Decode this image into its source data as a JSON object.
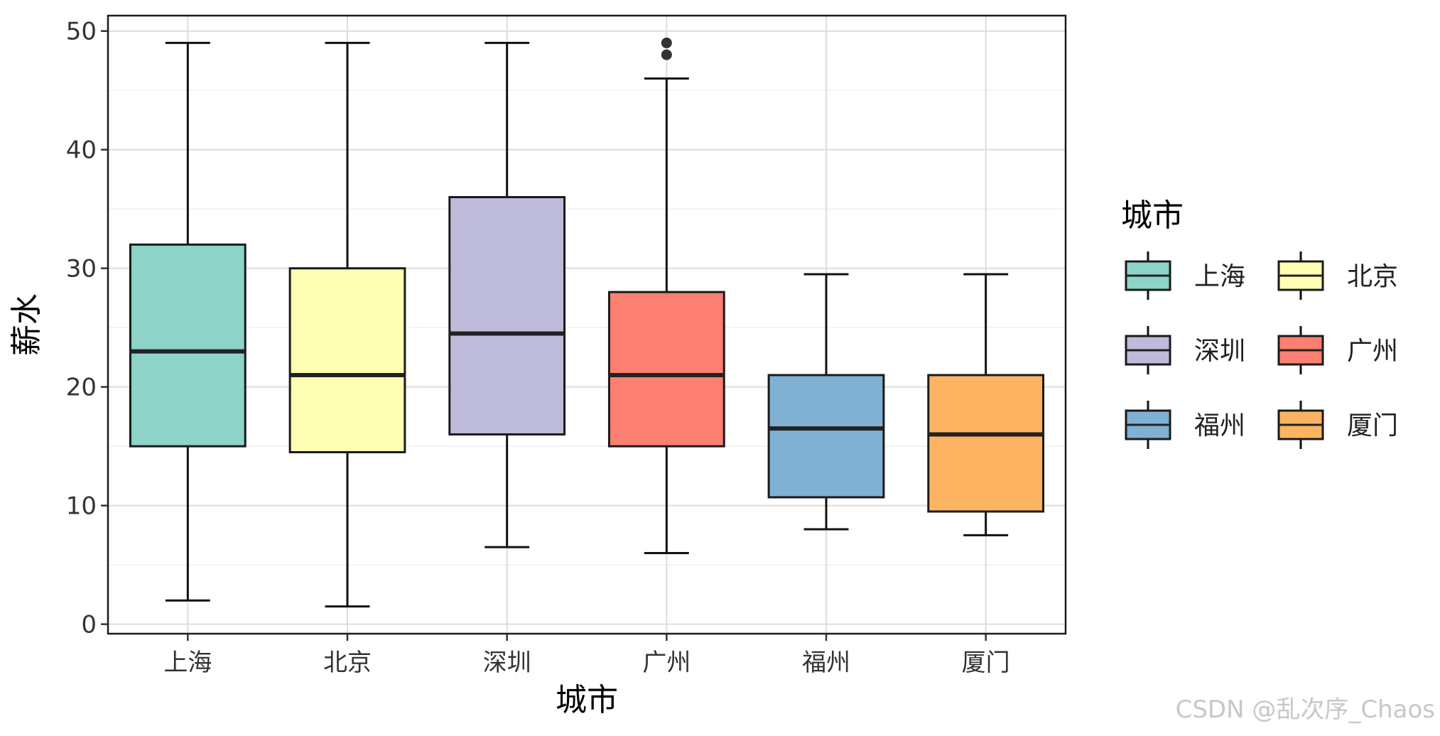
{
  "chart_data": {
    "type": "box",
    "categories": [
      "上海",
      "北京",
      "深圳",
      "广州",
      "福州",
      "厦门"
    ],
    "boxes": [
      {
        "category": "上海",
        "min": 2,
        "q1": 15,
        "median": 23,
        "q3": 32,
        "max": 49,
        "outliers": [],
        "color": "#8DD3C7"
      },
      {
        "category": "北京",
        "min": 1.5,
        "q1": 14.5,
        "median": 21,
        "q3": 30,
        "max": 49,
        "outliers": [],
        "color": "#FFFFB3"
      },
      {
        "category": "深圳",
        "min": 6.5,
        "q1": 16,
        "median": 24.5,
        "q3": 36,
        "max": 49,
        "outliers": [],
        "color": "#BEBADA"
      },
      {
        "category": "广州",
        "min": 6,
        "q1": 15,
        "median": 21,
        "q3": 28,
        "max": 46,
        "outliers": [
          48,
          49
        ],
        "color": "#FB8072"
      },
      {
        "category": "福州",
        "min": 8,
        "q1": 10.7,
        "median": 16.5,
        "q3": 21,
        "max": 29.5,
        "outliers": [],
        "color": "#80B1D3"
      },
      {
        "category": "厦门",
        "min": 7.5,
        "q1": 9.5,
        "median": 16,
        "q3": 21,
        "max": 29.5,
        "outliers": [],
        "color": "#FDB462"
      }
    ],
    "xlabel": "城市",
    "ylabel": "薪水",
    "ylim": [
      -0.8,
      51.3
    ],
    "yticks": [
      0,
      10,
      20,
      30,
      40,
      50
    ],
    "grid": true,
    "legend": {
      "title": "城市",
      "placement": "right",
      "entries": [
        "上海",
        "北京",
        "深圳",
        "广州",
        "福州",
        "厦门"
      ]
    }
  },
  "watermark": "CSDN @乱次序_Chaos"
}
